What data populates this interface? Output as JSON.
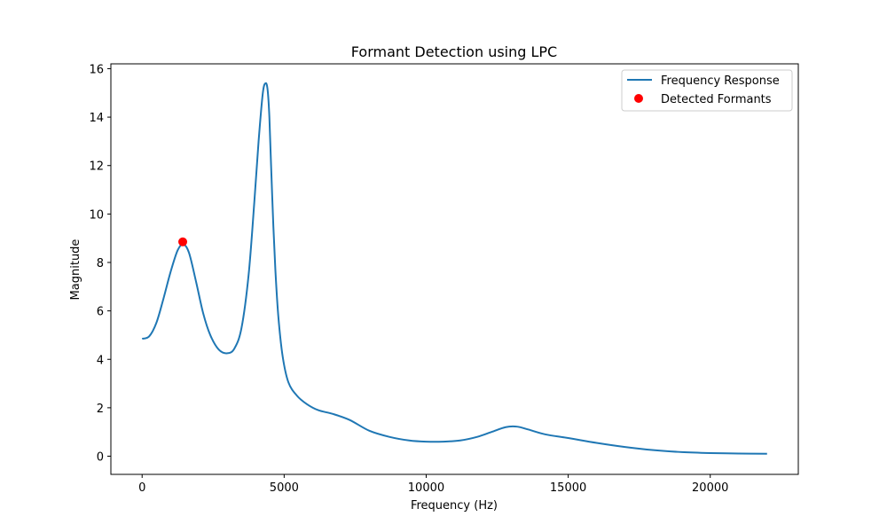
{
  "chart_data": {
    "type": "line",
    "title": "Formant Detection using LPC",
    "xlabel": "Frequency (Hz)",
    "ylabel": "Magnitude",
    "xlim": [
      -1100,
      23100
    ],
    "ylim": [
      -0.75,
      16.2
    ],
    "xticks": [
      0,
      5000,
      10000,
      15000,
      20000
    ],
    "yticks": [
      0,
      2,
      4,
      6,
      8,
      10,
      12,
      14,
      16
    ],
    "grid": false,
    "legend_position": "top-right",
    "series": [
      {
        "name": "Frequency Response",
        "kind": "line",
        "color": "#1f77b4",
        "x": [
          0,
          250,
          500,
          750,
          1000,
          1250,
          1450,
          1650,
          1900,
          2150,
          2400,
          2700,
          3000,
          3250,
          3500,
          3750,
          3950,
          4100,
          4250,
          4350,
          4420,
          4480,
          4540,
          4620,
          4700,
          4800,
          4950,
          5150,
          5450,
          5800,
          6200,
          6700,
          7300,
          8000,
          8700,
          9400,
          10000,
          10600,
          11200,
          11800,
          12300,
          12800,
          13200,
          13600,
          14200,
          15000,
          16000,
          17000,
          18000,
          19000,
          20000,
          21000,
          22000
        ],
        "y": [
          4.85,
          4.95,
          5.5,
          6.5,
          7.6,
          8.5,
          8.75,
          8.4,
          7.2,
          5.9,
          5.0,
          4.4,
          4.25,
          4.45,
          5.3,
          7.5,
          10.5,
          13.0,
          15.0,
          15.4,
          15.1,
          14.0,
          12.0,
          9.5,
          7.5,
          5.7,
          4.1,
          3.05,
          2.5,
          2.15,
          1.9,
          1.75,
          1.5,
          1.05,
          0.8,
          0.65,
          0.6,
          0.6,
          0.65,
          0.8,
          1.0,
          1.2,
          1.22,
          1.1,
          0.9,
          0.75,
          0.55,
          0.38,
          0.25,
          0.17,
          0.13,
          0.11,
          0.1
        ]
      },
      {
        "name": "Detected Formants",
        "kind": "scatter",
        "color": "#ff0000",
        "x": [
          1430
        ],
        "y": [
          8.85
        ]
      }
    ]
  }
}
